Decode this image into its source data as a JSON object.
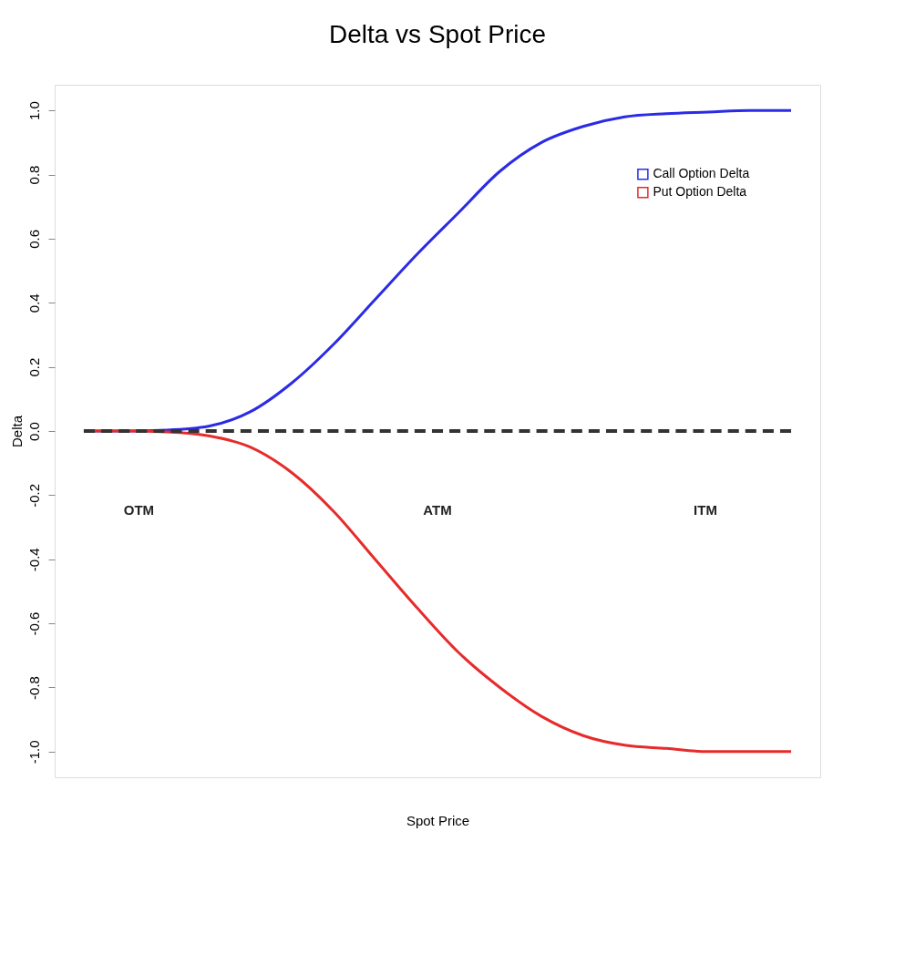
{
  "chart_data": {
    "type": "line",
    "title": "Delta vs Spot Price",
    "xlabel": "Spot Price",
    "ylabel": "Delta",
    "categories": [
      null,
      null,
      null,
      null,
      null,
      null,
      null,
      null,
      null,
      null,
      null,
      null,
      null,
      null,
      null,
      null,
      null,
      null
    ],
    "series": [
      {
        "name": "Call Option Delta",
        "color": "#2b2be6",
        "values": [
          0,
          0,
          0.003,
          0.015,
          0.06,
          0.15,
          0.27,
          0.41,
          0.55,
          0.68,
          0.81,
          0.9,
          0.95,
          0.98,
          0.99,
          0.995,
          1.0,
          1.0
        ]
      },
      {
        "name": "Put Option Delta",
        "color": "#e62b2b",
        "values": [
          0,
          0,
          -0.003,
          -0.015,
          -0.05,
          -0.13,
          -0.25,
          -0.4,
          -0.55,
          -0.69,
          -0.8,
          -0.89,
          -0.95,
          -0.98,
          -0.99,
          -1.0,
          -1.0,
          -1.0
        ]
      }
    ],
    "ylim": [
      -1.08,
      1.08
    ],
    "yticks": [
      {
        "value": -1,
        "label": "-1.0"
      },
      {
        "value": -0.8,
        "label": "-0.8"
      },
      {
        "value": -0.6,
        "label": "-0.6"
      },
      {
        "value": -0.4,
        "label": "-0.4"
      },
      {
        "value": -0.2,
        "label": "-0.2"
      },
      {
        "value": 0,
        "label": "0.0"
      },
      {
        "value": 0.2,
        "label": "0.2"
      },
      {
        "value": 0.4,
        "label": "0.4"
      },
      {
        "value": 0.6,
        "label": "0.6"
      },
      {
        "value": 0.8,
        "label": "0.8"
      },
      {
        "value": 1,
        "label": "1.0"
      }
    ],
    "ref_lines": [
      {
        "axis": "y",
        "value": 0,
        "color": "#333333",
        "line_style": "dashed"
      }
    ],
    "annotations": [
      "OTM",
      "ATM",
      "ITM"
    ],
    "tick_labels": "y",
    "grid": false,
    "legend": "top right",
    "marker": "none",
    "line_style": "solid"
  }
}
